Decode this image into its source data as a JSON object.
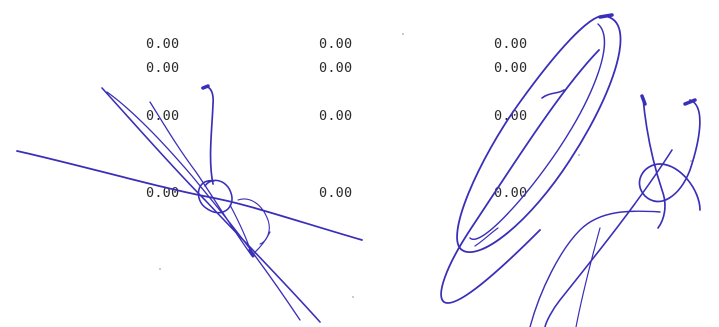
{
  "table": {
    "rows": [
      [
        "0",
        "0.00",
        "0.00",
        "0.00"
      ],
      [
        "0",
        "0.00",
        "0.00",
        "0.00"
      ],
      [
        "0",
        "0.00",
        "0.00",
        "0.00"
      ],
      [
        "0",
        "0.00",
        "0.00",
        "0.00"
      ]
    ]
  },
  "signature": {
    "ink_color": "#3a2fb8"
  }
}
